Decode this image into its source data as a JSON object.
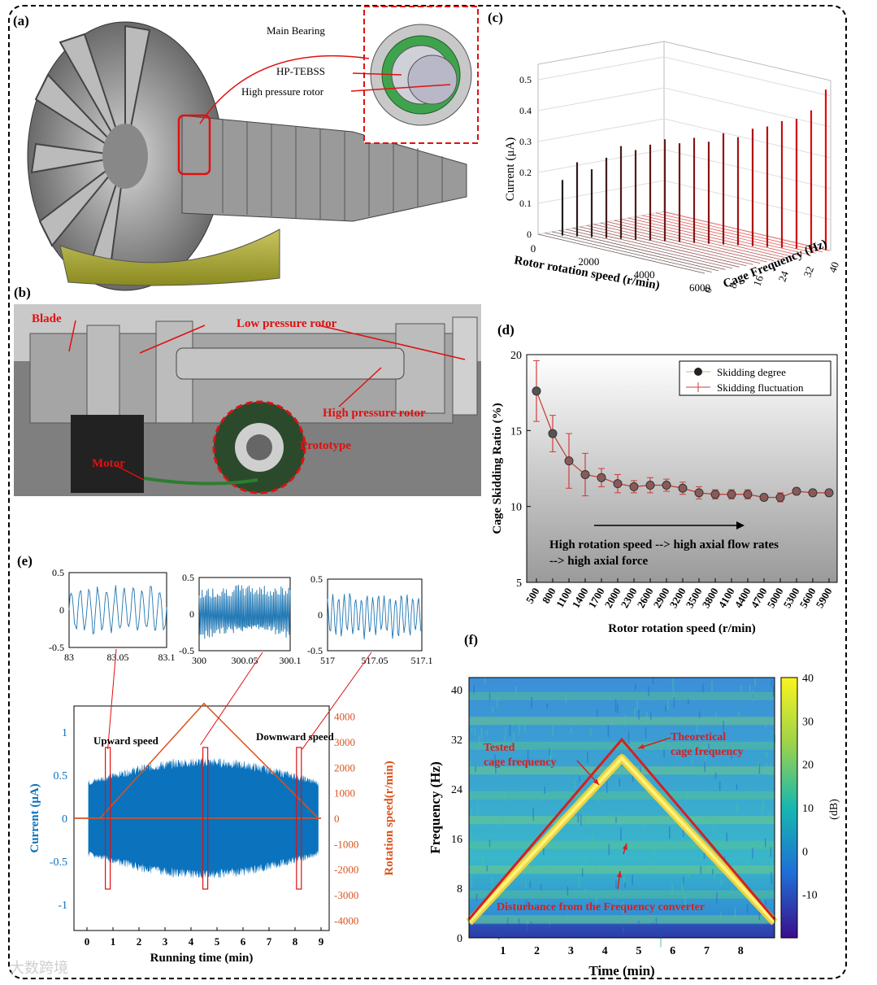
{
  "panels": {
    "a": {
      "label": "(a)",
      "callouts": [
        "Main Bearing",
        "HP-TEBSS",
        "High pressure rotor"
      ]
    },
    "b": {
      "label": "(b)",
      "callouts": [
        "Blade",
        "Low pressure rotor",
        "High pressure rotor",
        "Prototype",
        "Motor"
      ]
    },
    "c": {
      "label": "(c)",
      "chart_data": {
        "type": "bar",
        "projection": "3d",
        "zlabel": "Current (μA)",
        "xlabel": "Rotor rotation speed (r/min)",
        "ylabel": "Cage Frequency (Hz)",
        "z_ticks": [
          "0",
          "0.1",
          "0.2",
          "0.3",
          "0.4",
          "0.5"
        ],
        "x_ticks": [
          "0",
          "2000",
          "4000",
          "6000"
        ],
        "y_ticks": [
          "0",
          "8",
          "16",
          "24",
          "32",
          "40"
        ],
        "zlim": [
          0,
          0.55
        ],
        "peaks": [
          {
            "speed": 500,
            "current": 0.18
          },
          {
            "speed": 800,
            "current": 0.24
          },
          {
            "speed": 1100,
            "current": 0.22
          },
          {
            "speed": 1400,
            "current": 0.26
          },
          {
            "speed": 1700,
            "current": 0.3
          },
          {
            "speed": 2000,
            "current": 0.29
          },
          {
            "speed": 2300,
            "current": 0.31
          },
          {
            "speed": 2600,
            "current": 0.33
          },
          {
            "speed": 2900,
            "current": 0.32
          },
          {
            "speed": 3200,
            "current": 0.34
          },
          {
            "speed": 3500,
            "current": 0.33
          },
          {
            "speed": 3800,
            "current": 0.36
          },
          {
            "speed": 4100,
            "current": 0.35
          },
          {
            "speed": 4400,
            "current": 0.38
          },
          {
            "speed": 4700,
            "current": 0.39
          },
          {
            "speed": 5000,
            "current": 0.41
          },
          {
            "speed": 5300,
            "current": 0.42
          },
          {
            "speed": 5600,
            "current": 0.45
          },
          {
            "speed": 5900,
            "current": 0.52
          }
        ]
      }
    },
    "d": {
      "label": "(d)",
      "chart_data": {
        "type": "line",
        "xlabel": "Rotor rotation speed (r/min)",
        "ylabel": "Cage Skidding Ratio (%)",
        "categories": [
          "500",
          "800",
          "1100",
          "1400",
          "1700",
          "2000",
          "2300",
          "2600",
          "2900",
          "3200",
          "3500",
          "3800",
          "4100",
          "4400",
          "4700",
          "5000",
          "5300",
          "5600",
          "5900"
        ],
        "ylim": [
          5,
          20
        ],
        "y_ticks": [
          "5",
          "10",
          "15",
          "20"
        ],
        "series": [
          {
            "name": "Skidding degree",
            "values": [
              17.6,
              14.8,
              13.0,
              12.1,
              11.9,
              11.5,
              11.3,
              11.4,
              11.4,
              11.2,
              10.9,
              10.8,
              10.8,
              10.8,
              10.6,
              10.6,
              11.0,
              10.9,
              10.9
            ]
          },
          {
            "name": "Skidding fluctuation",
            "errors": [
              2.0,
              1.2,
              1.8,
              1.4,
              0.6,
              0.6,
              0.4,
              0.5,
              0.4,
              0.4,
              0.4,
              0.3,
              0.3,
              0.3,
              0.2,
              0.3,
              0.2,
              0.2,
              0.2
            ]
          }
        ],
        "legend": "top-right",
        "annotation_line1": "High rotation speed --> high axial flow rates",
        "annotation_line2": "--> high axial force"
      }
    },
    "e": {
      "label": "(e)",
      "chart_data": {
        "type": "line",
        "xlabel": "Running time (min)",
        "ylabel_left": "Current (μA)",
        "ylabel_right": "Rotation speed(r/min)",
        "x_ticks": [
          "0",
          "1",
          "2",
          "3",
          "4",
          "5",
          "6",
          "7",
          "8",
          "9"
        ],
        "y_ticks_left": [
          "-1",
          "-0.5",
          "0",
          "0.5",
          "1"
        ],
        "y_ticks_right": [
          "-4000",
          "-3000",
          "-2000",
          "-1000",
          "0",
          "1000",
          "2000",
          "3000",
          "4000"
        ],
        "ylim_left": [
          -1.3,
          1.3
        ],
        "ylim_right": [
          -4400,
          4400
        ],
        "speed_profile": {
          "time": [
            0,
            0.5,
            4.5,
            8.9,
            9.0
          ],
          "speed": [
            0,
            0,
            4500,
            0,
            0
          ]
        },
        "annotations": [
          "Upward speed",
          "Downward speed"
        ],
        "insets": [
          {
            "x_ticks": [
              "83",
              "83.05",
              "83.1"
            ],
            "y_ticks": [
              "-0.5",
              "0",
              "0.5"
            ]
          },
          {
            "x_ticks": [
              "300",
              "300.05",
              "300.1"
            ],
            "y_ticks": [
              "-0.5",
              "0",
              "0.5"
            ]
          },
          {
            "x_ticks": [
              "517",
              "517.05",
              "517.1"
            ],
            "y_ticks": [
              "-0.5",
              "0",
              "0.5"
            ]
          }
        ]
      }
    },
    "f": {
      "label": "(f)",
      "chart_data": {
        "type": "heatmap",
        "xlabel": "Time (min)",
        "ylabel": "Frequency (Hz)",
        "x_ticks": [
          "1",
          "2",
          "3",
          "4",
          "5",
          "6",
          "7",
          "8"
        ],
        "y_ticks": [
          "0",
          "8",
          "16",
          "24",
          "32",
          "40"
        ],
        "ylim": [
          0,
          42
        ],
        "colorbar_ticks": [
          "40",
          "30",
          "20",
          "10",
          "0",
          "-10"
        ],
        "colorbar_unit": "(dB)",
        "theoretical_cage_frequency": {
          "time": [
            0,
            4.5,
            9.0
          ],
          "freq": [
            3,
            32,
            3
          ]
        },
        "tested_cage_frequency": {
          "time": [
            0,
            4.5,
            9.0
          ],
          "freq": [
            2.5,
            29,
            2.5
          ]
        },
        "annotations": [
          "Tested",
          "cage frequency",
          "Theoretical",
          "cage frequency",
          "Disturbance from the Frequency converter"
        ]
      }
    }
  },
  "watermark": "大数跨境"
}
